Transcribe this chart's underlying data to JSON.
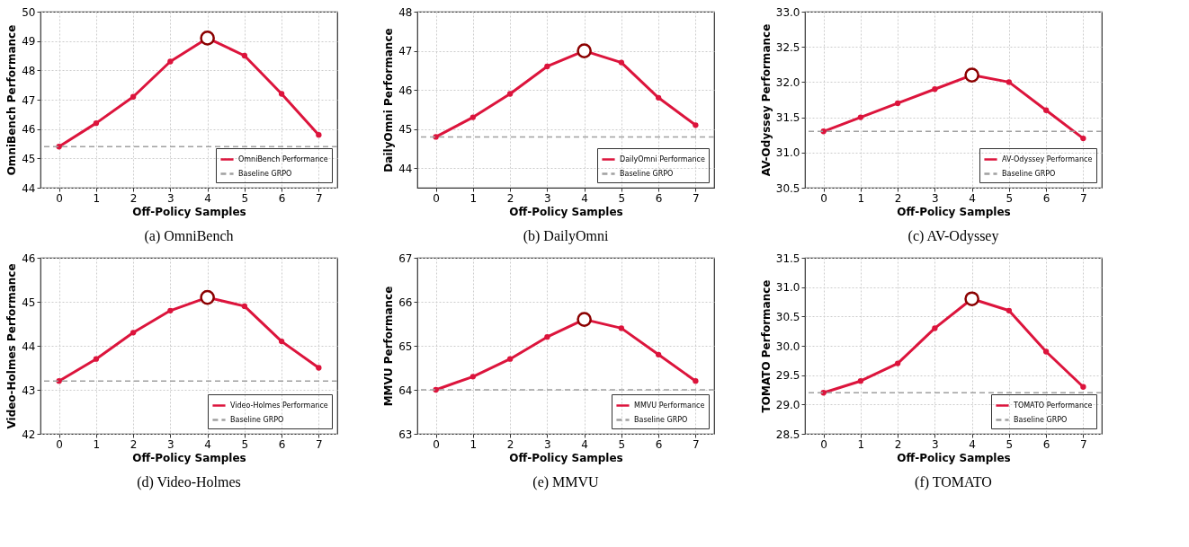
{
  "chart_data": [
    {
      "type": "line",
      "title": "(a) OmniBench",
      "xlabel": "Off-Policy Samples",
      "ylabel": "OmniBench Performance",
      "x": [
        0,
        1,
        2,
        3,
        4,
        5,
        6,
        7
      ],
      "xlim": [
        -0.5,
        7.5
      ],
      "xticks": [
        0,
        1,
        2,
        3,
        4,
        5,
        6,
        7
      ],
      "ylim": [
        44,
        50
      ],
      "yticks": [
        44,
        45,
        46,
        47,
        48,
        49,
        50
      ],
      "grid": true,
      "legend": "bottom right",
      "marker": "circle",
      "series": [
        {
          "name": "OmniBench Performance",
          "color": "#dc143c",
          "values": [
            45.4,
            46.2,
            47.1,
            48.3,
            49.1,
            48.5,
            47.2,
            45.8
          ]
        },
        {
          "type": "scatter",
          "color": "#8b0000",
          "values": [
            null,
            null,
            null,
            null,
            49.1,
            null,
            null,
            null
          ],
          "marker": "circle"
        }
      ],
      "ref_lines": [
        {
          "axis": "y",
          "value": 45.4,
          "label": "Baseline GRPO",
          "color": "#a0a0a0",
          "line_style": "dashed"
        }
      ]
    },
    {
      "type": "line",
      "title": "(b) DailyOmni",
      "xlabel": "Off-Policy Samples",
      "ylabel": "DailyOmni Performance",
      "x": [
        0,
        1,
        2,
        3,
        4,
        5,
        6,
        7
      ],
      "xlim": [
        -0.5,
        7.5
      ],
      "xticks": [
        0,
        1,
        2,
        3,
        4,
        5,
        6,
        7
      ],
      "ylim": [
        43.5,
        48
      ],
      "yticks": [
        44,
        45,
        46,
        47,
        48
      ],
      "grid": true,
      "legend": "bottom right",
      "marker": "circle",
      "series": [
        {
          "name": "DailyOmni Performance",
          "color": "#dc143c",
          "values": [
            44.8,
            45.3,
            45.9,
            46.6,
            47.0,
            46.7,
            45.8,
            45.1
          ]
        },
        {
          "type": "scatter",
          "color": "#8b0000",
          "values": [
            null,
            null,
            null,
            null,
            47.0,
            null,
            null,
            null
          ],
          "marker": "circle"
        }
      ],
      "ref_lines": [
        {
          "axis": "y",
          "value": 44.8,
          "label": "Baseline GRPO",
          "color": "#a0a0a0",
          "line_style": "dashed"
        }
      ]
    },
    {
      "type": "line",
      "title": "(c) AV-Odyssey",
      "xlabel": "Off-Policy Samples",
      "ylabel": "AV-Odyssey Performance",
      "x": [
        0,
        1,
        2,
        3,
        4,
        5,
        6,
        7
      ],
      "xlim": [
        -0.5,
        7.5
      ],
      "xticks": [
        0,
        1,
        2,
        3,
        4,
        5,
        6,
        7
      ],
      "ylim": [
        30.5,
        33.0
      ],
      "yticks": [
        {
          "value": 30.5,
          "label": "30.5"
        },
        {
          "value": 31,
          "label": "31.0"
        },
        {
          "value": 31.5,
          "label": "31.5"
        },
        {
          "value": 32,
          "label": "32.0"
        },
        {
          "value": 32.5,
          "label": "32.5"
        },
        {
          "value": 33,
          "label": "33.0"
        }
      ],
      "grid": true,
      "legend": "bottom right",
      "marker": "circle",
      "series": [
        {
          "name": "AV-Odyssey Performance",
          "color": "#dc143c",
          "values": [
            31.3,
            31.5,
            31.7,
            31.9,
            32.1,
            32.0,
            31.6,
            31.2
          ]
        },
        {
          "type": "scatter",
          "color": "#8b0000",
          "values": [
            null,
            null,
            null,
            null,
            32.1,
            null,
            null,
            null
          ],
          "marker": "circle"
        }
      ],
      "ref_lines": [
        {
          "axis": "y",
          "value": 31.3,
          "label": "Baseline GRPO",
          "color": "#a0a0a0",
          "line_style": "dashed"
        }
      ]
    },
    {
      "type": "line",
      "title": "(d) Video-Holmes",
      "xlabel": "Off-Policy Samples",
      "ylabel": "Video-Holmes Performance",
      "x": [
        0,
        1,
        2,
        3,
        4,
        5,
        6,
        7
      ],
      "xlim": [
        -0.5,
        7.5
      ],
      "xticks": [
        0,
        1,
        2,
        3,
        4,
        5,
        6,
        7
      ],
      "ylim": [
        42,
        46
      ],
      "yticks": [
        42,
        43,
        44,
        45,
        46
      ],
      "grid": true,
      "legend": "bottom right",
      "marker": "circle",
      "series": [
        {
          "name": "Video-Holmes Performance",
          "color": "#dc143c",
          "values": [
            43.2,
            43.7,
            44.3,
            44.8,
            45.1,
            44.9,
            44.1,
            43.5
          ]
        },
        {
          "type": "scatter",
          "color": "#8b0000",
          "values": [
            null,
            null,
            null,
            null,
            45.1,
            null,
            null,
            null
          ],
          "marker": "circle"
        }
      ],
      "ref_lines": [
        {
          "axis": "y",
          "value": 43.2,
          "label": "Baseline GRPO",
          "color": "#a0a0a0",
          "line_style": "dashed"
        }
      ]
    },
    {
      "type": "line",
      "title": "(e) MMVU",
      "xlabel": "Off-Policy Samples",
      "ylabel": "MMVU Performance",
      "x": [
        0,
        1,
        2,
        3,
        4,
        5,
        6,
        7
      ],
      "xlim": [
        -0.5,
        7.5
      ],
      "xticks": [
        0,
        1,
        2,
        3,
        4,
        5,
        6,
        7
      ],
      "ylim": [
        63,
        67
      ],
      "yticks": [
        63,
        64,
        65,
        66,
        67
      ],
      "grid": true,
      "legend": "bottom right",
      "marker": "circle",
      "series": [
        {
          "name": "MMVU Performance",
          "color": "#dc143c",
          "values": [
            64.0,
            64.3,
            64.7,
            65.2,
            65.6,
            65.4,
            64.8,
            64.2
          ]
        },
        {
          "type": "scatter",
          "color": "#8b0000",
          "values": [
            null,
            null,
            null,
            null,
            65.6,
            null,
            null,
            null
          ],
          "marker": "circle"
        }
      ],
      "ref_lines": [
        {
          "axis": "y",
          "value": 64.0,
          "label": "Baseline GRPO",
          "color": "#a0a0a0",
          "line_style": "dashed"
        }
      ]
    },
    {
      "type": "line",
      "title": "(f) TOMATO",
      "xlabel": "Off-Policy Samples",
      "ylabel": "TOMATO Performance",
      "x": [
        0,
        1,
        2,
        3,
        4,
        5,
        6,
        7
      ],
      "xlim": [
        -0.5,
        7.5
      ],
      "xticks": [
        0,
        1,
        2,
        3,
        4,
        5,
        6,
        7
      ],
      "ylim": [
        28.5,
        31.5
      ],
      "yticks": [
        {
          "value": 28.5,
          "label": "28.5"
        },
        {
          "value": 29,
          "label": "29.0"
        },
        {
          "value": 29.5,
          "label": "29.5"
        },
        {
          "value": 30,
          "label": "30.0"
        },
        {
          "value": 30.5,
          "label": "30.5"
        },
        {
          "value": 31,
          "label": "31.0"
        },
        {
          "value": 31.5,
          "label": "31.5"
        }
      ],
      "grid": true,
      "legend": "bottom right",
      "marker": "circle",
      "series": [
        {
          "name": "TOMATO Performance",
          "color": "#dc143c",
          "values": [
            29.2,
            29.4,
            29.7,
            30.3,
            30.8,
            30.6,
            29.9,
            29.3
          ]
        },
        {
          "type": "scatter",
          "color": "#8b0000",
          "values": [
            null,
            null,
            null,
            null,
            30.8,
            null,
            null,
            null
          ],
          "marker": "circle"
        }
      ],
      "ref_lines": [
        {
          "axis": "y",
          "value": 29.2,
          "label": "Baseline GRPO",
          "color": "#a0a0a0",
          "line_style": "dashed"
        }
      ]
    }
  ]
}
